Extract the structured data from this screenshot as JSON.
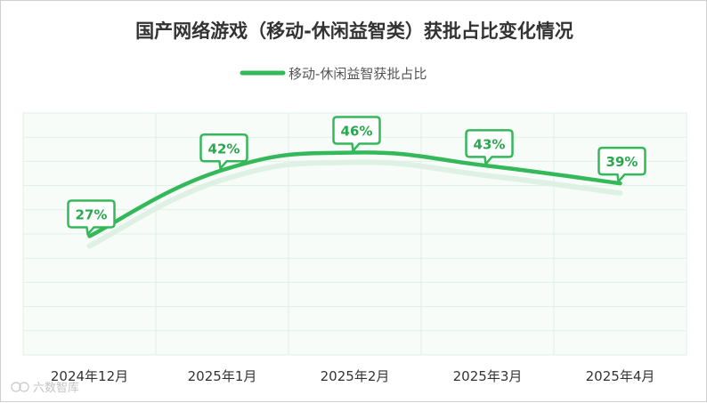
{
  "chart_data": {
    "type": "line",
    "title": "国产网络游戏（移动-休闲益智类）获批占比变化情况",
    "categories": [
      "2024年12月",
      "2025年1月",
      "2025年2月",
      "2025年3月",
      "2025年4月"
    ],
    "series": [
      {
        "name": "移动-休闲益智获批占比",
        "values": [
          27,
          42,
          46,
          43,
          39
        ],
        "labels": [
          "27%",
          "42%",
          "46%",
          "43%",
          "39%"
        ]
      }
    ],
    "ylim": [
      0,
      55
    ],
    "grid": true,
    "legend_position": "top-center",
    "line_style": "smooth"
  },
  "colors": {
    "line": "#35b85a",
    "label_text": "#2aa84e",
    "label_fill": "#ffffff",
    "plot_bg": "#f7fcf8",
    "grid": "#dff1e4",
    "axis_text": "#333333",
    "title_text": "#333333"
  },
  "watermark": "六数智库"
}
